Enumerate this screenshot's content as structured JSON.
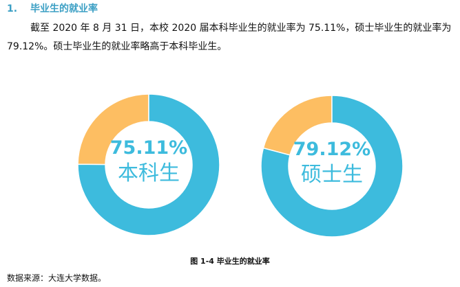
{
  "section": {
    "number": "1.",
    "title": "毕业生的就业率"
  },
  "paragraph": "截至 2020 年 8 月 31 日，本校 2020 届本科毕业生的就业率为 75.11%，硕士毕业生的就业率为 79.12%。硕士毕业生的就业率略高于本科毕业生。",
  "caption": "图 1-4 毕业生的就业率",
  "source": "数据来源：大连大学数据。",
  "colors": {
    "employed": "#3DBBDD",
    "remainder": "#FDBE62",
    "heading": "#3b9fc4"
  },
  "chart_data": [
    {
      "type": "pie",
      "variant": "donut",
      "center_value": "75.11%",
      "center_label": "本科生",
      "values": [
        75.11,
        24.89
      ],
      "colors": [
        "#3DBBDD",
        "#FDBE62"
      ]
    },
    {
      "type": "pie",
      "variant": "donut",
      "center_value": "79.12%",
      "center_label": "硕士生",
      "values": [
        79.12,
        20.88
      ],
      "colors": [
        "#3DBBDD",
        "#FDBE62"
      ]
    }
  ]
}
